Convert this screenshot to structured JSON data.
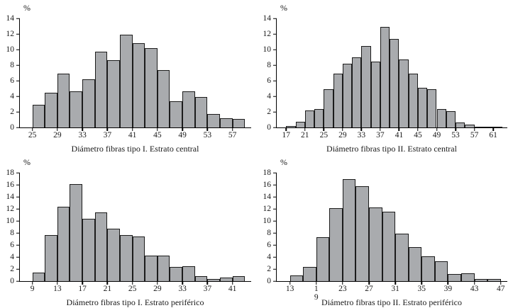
{
  "styles": {
    "background": "#ffffff",
    "bar_fill": "#a9abae",
    "bar_border": "#1c1c1c",
    "axis_color": "#000000",
    "text_color": "#1a1a1a"
  },
  "chart_data": [
    {
      "type": "bar",
      "id": "tipo1-central",
      "title": "Diámetro fibras tipo I. Estrato central",
      "ylabel": "%",
      "xlabel": "Diámetro fibras tipo I. Estrato central",
      "ylim": [
        0,
        14
      ],
      "ytick_step": 2,
      "grid": false,
      "legend": "none",
      "bin_start": 25,
      "bin_width": 2,
      "xtick_labels": [
        "25",
        "29",
        "33",
        "37",
        "41",
        "45",
        "49",
        "53",
        "57"
      ],
      "values": [
        2.9,
        4.5,
        6.9,
        4.6,
        6.2,
        9.7,
        8.6,
        11.9,
        10.8,
        10.2,
        7.4,
        3.4,
        4.6,
        3.9,
        1.7,
        1.2,
        1.1
      ]
    },
    {
      "type": "bar",
      "id": "tipo2-central",
      "title": "Diámetro fibras tipo II. Estrato central",
      "ylabel": "%",
      "xlabel": "Diámetro fibras tipo II. Estrato central",
      "ylim": [
        0,
        14
      ],
      "ytick_step": 2,
      "grid": false,
      "legend": "none",
      "bin_start": 17,
      "bin_width": 2,
      "xtick_labels": [
        "17",
        "21",
        "25",
        "29",
        "33",
        "37",
        "41",
        "45",
        "49",
        "53",
        "57",
        "61"
      ],
      "values": [
        0.2,
        0.7,
        2.2,
        2.4,
        4.9,
        6.9,
        8.2,
        9.0,
        10.5,
        8.5,
        12.9,
        11.4,
        8.7,
        6.9,
        5.1,
        4.9,
        2.4,
        2.1,
        0.6,
        0.4,
        0.1,
        0.1,
        0.1
      ]
    },
    {
      "type": "bar",
      "id": "tipo1-periferico",
      "title": "Diámetro fibras tipo I. Estrato periférico",
      "ylabel": "%",
      "xlabel": "Diámetro fibras tipo I. Estrato periférico",
      "ylim": [
        0,
        18
      ],
      "ytick_step": 2,
      "grid": false,
      "legend": "none",
      "bin_start": 9,
      "bin_width": 2,
      "xtick_labels": [
        "9",
        "13",
        "17",
        "21",
        "25",
        "29",
        "33",
        "37",
        "41"
      ],
      "values": [
        1.4,
        7.6,
        12.3,
        16.1,
        10.4,
        11.4,
        8.7,
        7.6,
        7.4,
        4.2,
        4.2,
        2.4,
        2.5,
        0.8,
        0.3,
        0.6,
        0.8
      ]
    },
    {
      "type": "bar",
      "id": "tipo2-periferico",
      "title": "Diámetro fibras tipo II. Estrato periférico",
      "ylabel": "%",
      "xlabel": "Diámetro fibras tipo II. Estrato periférico",
      "ylim": [
        0,
        18
      ],
      "ytick_step": 2,
      "grid": false,
      "legend": "none",
      "bin_start": 13,
      "bin_width": 2,
      "xtick_labels": [
        "13",
        "1\n9",
        "23",
        "27",
        "31",
        "35",
        "39",
        "43",
        "47"
      ],
      "values": [
        1.0,
        2.4,
        7.3,
        12.1,
        17.0,
        15.8,
        12.2,
        11.5,
        7.9,
        5.6,
        4.1,
        3.3,
        1.2,
        1.3,
        0.3,
        0.3
      ]
    }
  ]
}
